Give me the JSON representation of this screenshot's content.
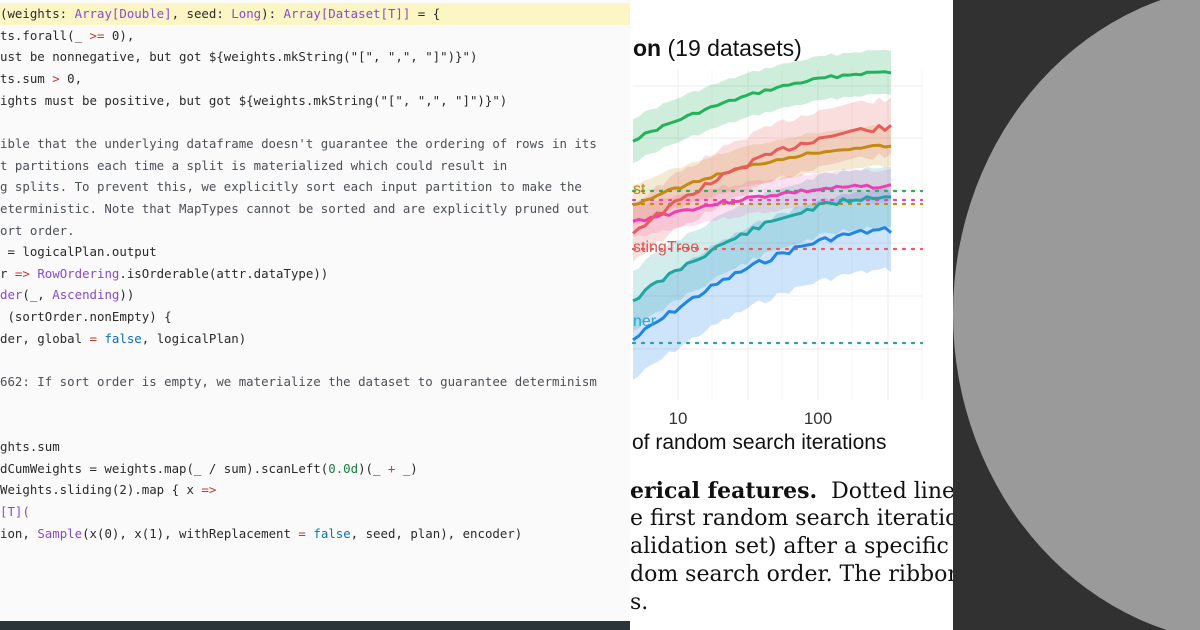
{
  "code": {
    "lines": [
      {
        "spans": [
          {
            "t": "(weights: ",
            "c": ""
          },
          {
            "t": "Array[Double]",
            "c": "ty"
          },
          {
            "t": ", seed: ",
            "c": ""
          },
          {
            "t": "Long",
            "c": "ty"
          },
          {
            "t": "): ",
            "c": ""
          },
          {
            "t": "Array[Dataset[T]]",
            "c": "ty"
          },
          {
            "t": " = {",
            "c": ""
          }
        ],
        "hl": true
      },
      {
        "spans": [
          {
            "t": "ts.forall(_ ",
            "c": ""
          },
          {
            "t": ">=",
            "c": "op"
          },
          {
            "t": " 0),",
            "c": ""
          }
        ]
      },
      {
        "spans": [
          {
            "t": "ust be nonnegative, but got ${weights.mkString(\"[\", \",\", \"]\")}\")",
            "c": ""
          }
        ]
      },
      {
        "spans": [
          {
            "t": "ts.sum ",
            "c": ""
          },
          {
            "t": ">",
            "c": "op"
          },
          {
            "t": " 0,",
            "c": ""
          }
        ]
      },
      {
        "spans": [
          {
            "t": "ights must be positive, but got ${weights.mkString(\"[\", \",\", \"]\")}\")",
            "c": ""
          }
        ]
      },
      {
        "spans": [
          {
            "t": "",
            "c": ""
          }
        ]
      },
      {
        "spans": [
          {
            "t": "ible that the underlying dataframe doesn't guarantee the ordering of rows in its",
            "c": "cm"
          }
        ]
      },
      {
        "spans": [
          {
            "t": "t partitions each time a split is materialized which could result in",
            "c": "cm"
          }
        ]
      },
      {
        "spans": [
          {
            "t": "g splits. To prevent this, we explicitly sort each input partition to make the",
            "c": "cm"
          }
        ]
      },
      {
        "spans": [
          {
            "t": "eterministic. Note that MapTypes cannot be sorted and are explicitly pruned out",
            "c": "cm"
          }
        ]
      },
      {
        "spans": [
          {
            "t": "ort order.",
            "c": "cm"
          }
        ]
      },
      {
        "spans": [
          {
            "t": " = logicalPlan.output",
            "c": ""
          }
        ]
      },
      {
        "spans": [
          {
            "t": "r ",
            "c": ""
          },
          {
            "t": "=>",
            "c": "op"
          },
          {
            "t": " ",
            "c": ""
          },
          {
            "t": "RowOrdering",
            "c": "ty"
          },
          {
            "t": ".isOrderable(attr.dataType))",
            "c": ""
          }
        ]
      },
      {
        "spans": [
          {
            "t": "der",
            "c": "ty"
          },
          {
            "t": "(_, ",
            "c": ""
          },
          {
            "t": "Ascending",
            "c": "ty"
          },
          {
            "t": "))",
            "c": ""
          }
        ]
      },
      {
        "spans": [
          {
            "t": " (sortOrder.nonEmpty) {",
            "c": ""
          }
        ]
      },
      {
        "spans": [
          {
            "t": "der, global ",
            "c": ""
          },
          {
            "t": "=",
            "c": "op"
          },
          {
            "t": " ",
            "c": ""
          },
          {
            "t": "false",
            "c": "kw"
          },
          {
            "t": ", logicalPlan)",
            "c": ""
          }
        ]
      },
      {
        "spans": [
          {
            "t": "",
            "c": ""
          }
        ]
      },
      {
        "spans": [
          {
            "t": "662: If sort order is empty, we materialize the dataset to guarantee determinism",
            "c": "cm"
          }
        ]
      },
      {
        "spans": [
          {
            "t": "",
            "c": ""
          }
        ]
      },
      {
        "spans": [
          {
            "t": "",
            "c": ""
          }
        ]
      },
      {
        "spans": [
          {
            "t": "ghts.sum",
            "c": ""
          }
        ]
      },
      {
        "spans": [
          {
            "t": "dCumWeights = weights.map(_ / sum).scanLeft(",
            "c": ""
          },
          {
            "t": "0.0d",
            "c": "num"
          },
          {
            "t": ")(_ ",
            "c": ""
          },
          {
            "t": "+",
            "c": "op"
          },
          {
            "t": " _)",
            "c": ""
          }
        ]
      },
      {
        "spans": [
          {
            "t": "Weights.sliding(2).map { x ",
            "c": ""
          },
          {
            "t": "=>",
            "c": "op"
          }
        ]
      },
      {
        "spans": [
          {
            "t": "[T](",
            "c": "ty"
          }
        ]
      },
      {
        "spans": [
          {
            "t": "ion, ",
            "c": ""
          },
          {
            "t": "Sample",
            "c": "ty"
          },
          {
            "t": "(x(0), x(1), withReplacement ",
            "c": ""
          },
          {
            "t": "=",
            "c": "op"
          },
          {
            "t": " ",
            "c": ""
          },
          {
            "t": "false",
            "c": "kw"
          },
          {
            "t": ", seed, plan), encoder)",
            "c": ""
          }
        ]
      }
    ]
  },
  "figure": {
    "title": "on (19 datasets)",
    "x_tick_labels": [
      "10",
      "100"
    ],
    "x_axis_label": "of random search iterations",
    "series_labels": [
      "st",
      "stingTree",
      "ner"
    ],
    "caption_lines": [
      {
        "bold": "erical features.",
        "rest": "  Dotted lines"
      },
      {
        "bold": "",
        "rest": "e first random search iteration."
      },
      {
        "bold": "",
        "rest": "alidation set) after a specific"
      },
      {
        "bold": "",
        "rest": "dom search order. The ribbon"
      },
      {
        "bold": "",
        "rest": "s."
      }
    ],
    "colors": {
      "green": "#22b35a",
      "red": "#e85c5c",
      "gold": "#c48a10",
      "pink": "#ec3fb4",
      "teal": "#1fa6a0",
      "blue": "#1f86e6"
    }
  }
}
